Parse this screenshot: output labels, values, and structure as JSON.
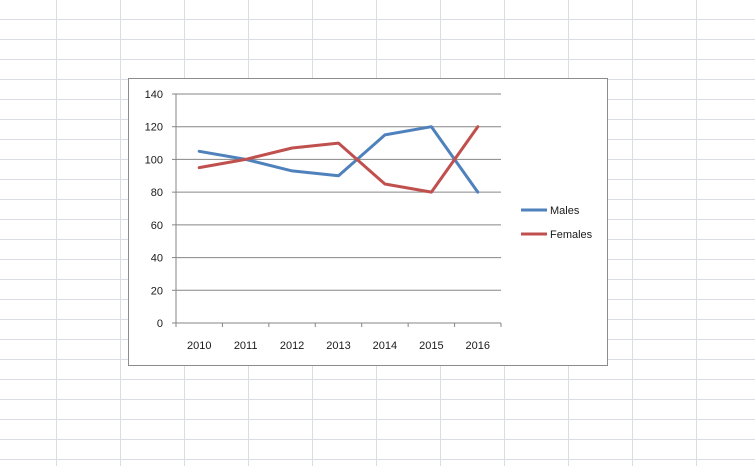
{
  "chart_data": {
    "type": "line",
    "title": "",
    "xlabel": "",
    "ylabel": "",
    "categories": [
      "2010",
      "2011",
      "2012",
      "2013",
      "2014",
      "2015",
      "2016"
    ],
    "ylim": [
      0,
      140
    ],
    "yticks": [
      0,
      20,
      40,
      60,
      80,
      100,
      120,
      140
    ],
    "grid": "horizontal",
    "legend_position": "right",
    "series": [
      {
        "name": "Males",
        "color": "#4f81bd",
        "values": [
          105,
          100,
          93,
          90,
          115,
          120,
          80
        ]
      },
      {
        "name": "Females",
        "color": "#c0504d",
        "values": [
          95,
          100,
          107,
          110,
          85,
          80,
          120
        ]
      }
    ]
  }
}
